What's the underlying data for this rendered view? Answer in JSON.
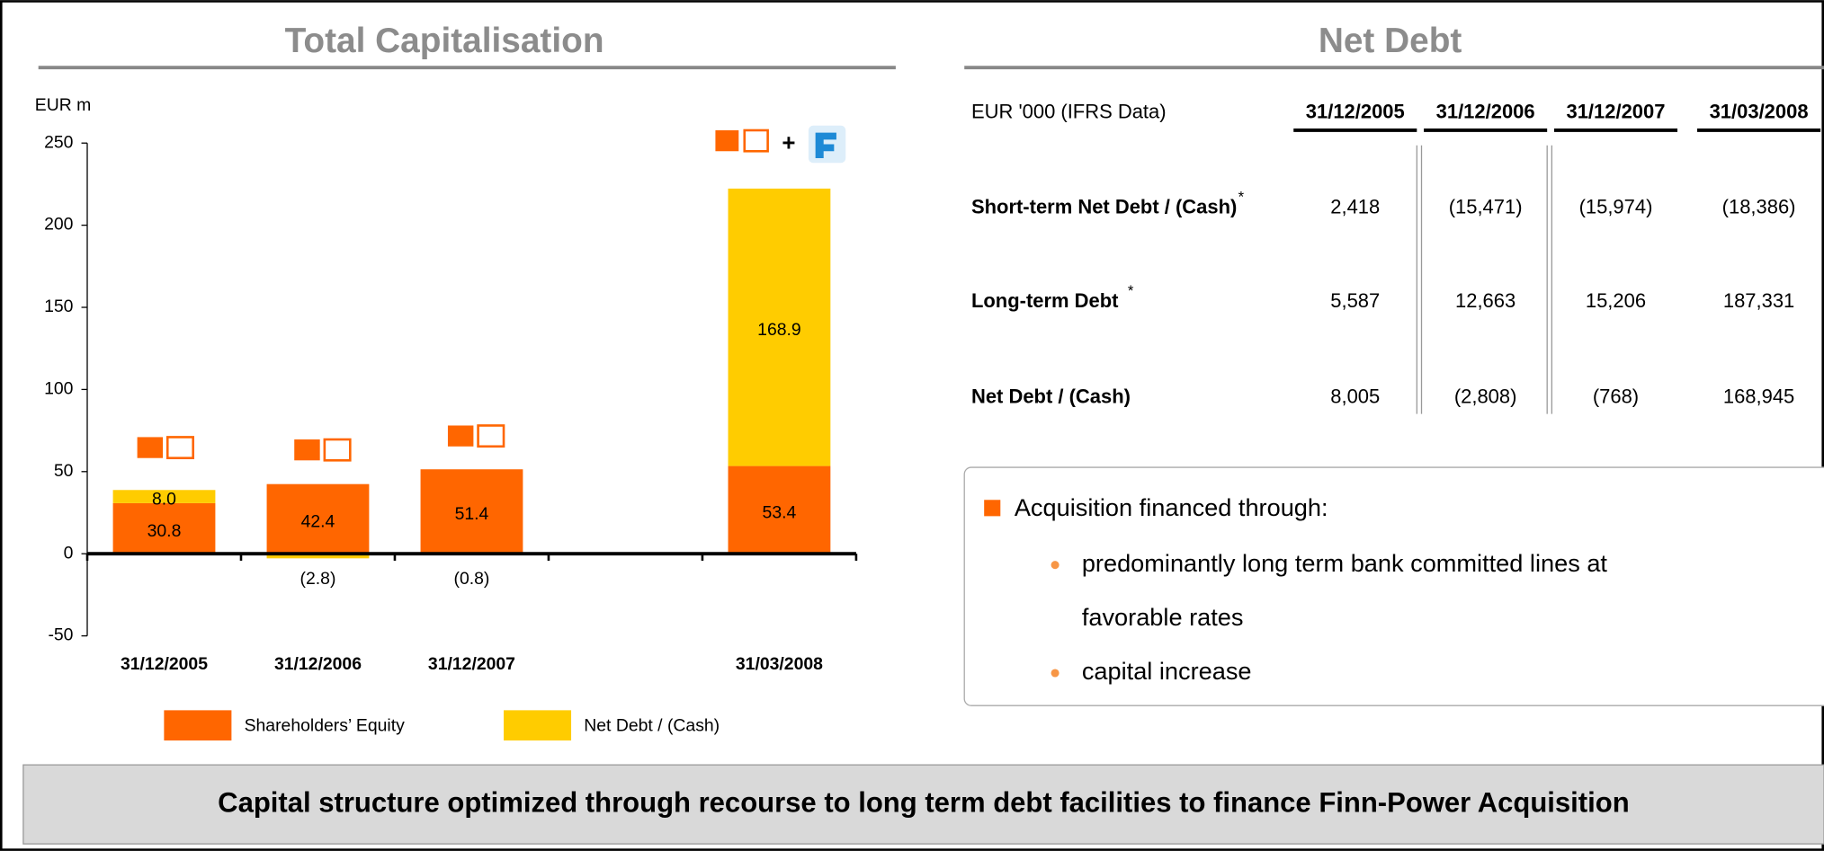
{
  "chart_data": {
    "type": "stacked_bar",
    "title": "Total Capitalisation",
    "y_label": "EUR m",
    "categories": [
      "31/12/2005",
      "31/12/2006",
      "31/12/2007",
      null,
      "31/03/2008"
    ],
    "series": [
      {
        "name": "Shareholders’ Equity",
        "color": "#ff6600",
        "values": [
          30.8,
          42.4,
          51.4,
          null,
          53.4
        ]
      },
      {
        "name": "Net Debt / (Cash)",
        "color": "#ffcc00",
        "values": [
          8.0,
          -2.8,
          -0.8,
          null,
          168.9
        ],
        "value_labels": [
          "8.0",
          "(2.8)",
          "(0.8)",
          null,
          "168.9"
        ]
      }
    ],
    "ylim": [
      -50,
      250
    ],
    "yticks": [
      -50,
      0,
      50,
      100,
      150,
      200,
      250
    ],
    "grid": false,
    "legend": "bottom"
  },
  "table": {
    "title": "Net Debt",
    "header": [
      "EUR '000 (IFRS Data)",
      "31/12/2005",
      "31/12/2006",
      "31/12/2007",
      "31/03/2008"
    ],
    "rows": [
      {
        "label": "Short-term Net Debt / (Cash)",
        "note": "*",
        "values": [
          "2,418",
          "(15,471)",
          "(15,974)",
          "(18,386)"
        ]
      },
      {
        "label": "Long-term Debt",
        "note": "*",
        "values": [
          "5,587",
          "12,663",
          "15,206",
          "187,331"
        ]
      },
      {
        "label": "Net Debt / (Cash)",
        "values": [
          "8,005",
          "(2,808)",
          "(768)",
          "168,945"
        ]
      }
    ]
  },
  "box": {
    "heading": "Acquisition financed through:",
    "bullets": [
      [
        "predominantly long term bank committed lines at",
        "favorable rates"
      ],
      [
        "capital increase"
      ]
    ]
  },
  "footer": "Capital structure optimized through recourse to long term debt facilities to finance Finn-Power Acquisition"
}
